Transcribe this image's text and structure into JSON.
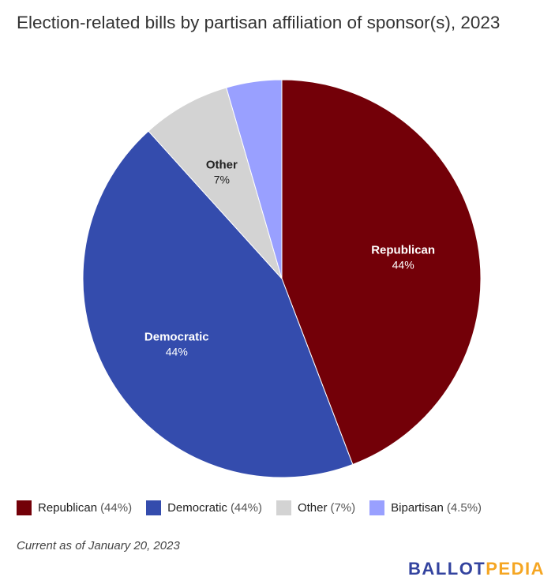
{
  "chart_data": {
    "type": "pie",
    "title": "Election-related bills by partisan affiliation of sponsor(s), 2023",
    "slices": [
      {
        "name": "Republican",
        "value": 44.2,
        "label_pct": "44%",
        "legend_pct": "(44%)",
        "color": "#730008",
        "label_color": "#ffffff",
        "show_label": true
      },
      {
        "name": "Democratic",
        "value": 44.1,
        "label_pct": "44%",
        "legend_pct": "(44%)",
        "color": "#344cad",
        "label_color": "#ffffff",
        "show_label": true
      },
      {
        "name": "Other",
        "value": 7.2,
        "label_pct": "7%",
        "legend_pct": "(7%)",
        "color": "#d3d3d3",
        "label_color": "#222222",
        "show_label": true
      },
      {
        "name": "Bipartisan",
        "value": 4.5,
        "label_pct": "4.5%",
        "legend_pct": "(4.5%)",
        "color": "#99a0ff",
        "label_color": "#222222",
        "show_label": false
      }
    ],
    "legend_position": "bottom"
  },
  "note": "Current as of January 20, 2023",
  "logo": {
    "part1": "BALLOT",
    "part2": "PEDIA"
  }
}
